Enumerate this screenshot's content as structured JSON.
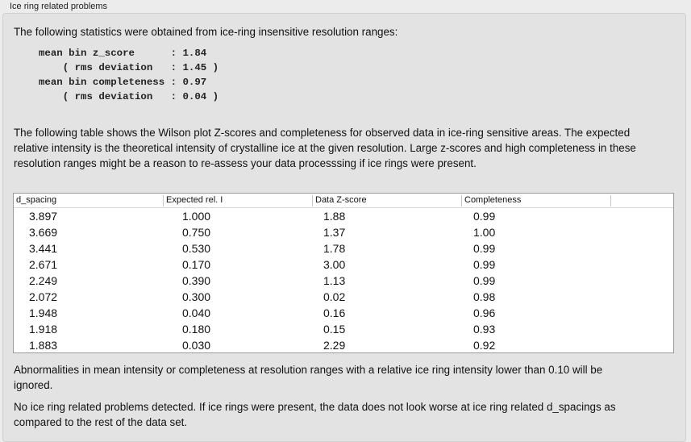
{
  "group_title": "Ice ring related problems",
  "intro": "The following statistics were obtained from ice-ring insensitive resolution ranges:",
  "stats": "mean bin z_score      : 1.84\n    ( rms deviation   : 1.45 )\nmean bin completeness : 0.97\n    ( rms deviation   : 0.04 )",
  "description": "The following table shows the Wilson plot Z-scores and completeness for observed data in ice-ring sensitive areas. The expected relative intensity is the theoretical intensity of crystalline ice at the given resolution. Large z-scores and high completeness in these resolution ranges might be a reason to re-assess your data processsing if ice rings were present.",
  "table": {
    "columns": [
      "d_spacing",
      "Expected rel. I",
      "Data Z-score",
      "Completeness"
    ],
    "rows": [
      [
        "3.897",
        "1.000",
        "1.88",
        "0.99"
      ],
      [
        "3.669",
        "0.750",
        "1.37",
        "1.00"
      ],
      [
        "3.441",
        "0.530",
        "1.78",
        "0.99"
      ],
      [
        "2.671",
        "0.170",
        "3.00",
        "0.99"
      ],
      [
        "2.249",
        "0.390",
        "1.13",
        "0.99"
      ],
      [
        "2.072",
        "0.300",
        "0.02",
        "0.98"
      ],
      [
        "1.948",
        "0.040",
        "0.16",
        "0.96"
      ],
      [
        "1.918",
        "0.180",
        "0.15",
        "0.93"
      ],
      [
        "1.883",
        "0.030",
        "2.29",
        "0.92"
      ]
    ]
  },
  "note": "Abnormalities in mean intensity or completeness at resolution ranges with a relative ice ring intensity lower than 0.10 will be ignored.",
  "conclusion": "No ice ring related problems detected. If ice rings were present, the data does not look worse at ice ring related d_spacings as compared to the rest of the data set."
}
